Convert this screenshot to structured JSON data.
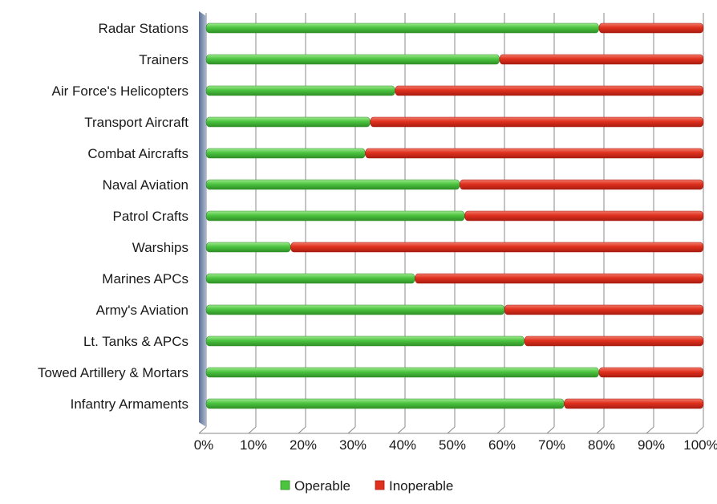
{
  "chart_data": {
    "type": "bar",
    "orientation": "horizontal",
    "stacked": "percent",
    "categories": [
      "Radar Stations",
      "Trainers",
      "Air Force's Helicopters",
      "Transport Aircraft",
      "Combat Aircrafts",
      "Naval Aviation",
      "Patrol Crafts",
      "Warships",
      "Marines APCs",
      "Army's Aviation",
      "Lt. Tanks & APCs",
      "Towed Artillery & Mortars",
      "Infantry Armaments"
    ],
    "series": [
      {
        "name": "Operable",
        "color": "#4cc43f",
        "values": [
          79,
          59,
          38,
          33,
          32,
          51,
          52,
          17,
          42,
          60,
          64,
          79,
          72
        ]
      },
      {
        "name": "Inoperable",
        "color": "#e0301e",
        "values": [
          21,
          41,
          62,
          67,
          68,
          49,
          48,
          83,
          58,
          40,
          36,
          21,
          28
        ]
      }
    ],
    "xlim": [
      0,
      100
    ],
    "x_ticks": [
      "0%",
      "10%",
      "20%",
      "30%",
      "40%",
      "50%",
      "60%",
      "70%",
      "80%",
      "90%",
      "100%"
    ],
    "grid": "vertical",
    "legend_position": "bottom"
  }
}
